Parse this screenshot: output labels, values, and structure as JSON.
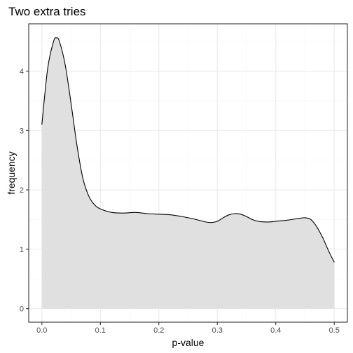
{
  "chart_data": {
    "type": "area",
    "title": "Two extra tries",
    "xlabel": "p-value",
    "ylabel": "frequency",
    "xlim": [
      -0.0225,
      0.5225
    ],
    "ylim": [
      -0.2284,
      4.7964
    ],
    "x_ticks": [
      0.0,
      0.1,
      0.2,
      0.3,
      0.4,
      0.5
    ],
    "x_tick_labels": [
      "0.0",
      "0.1",
      "0.2",
      "0.3",
      "0.4",
      "0.5"
    ],
    "y_ticks": [
      0,
      1,
      2,
      3,
      4
    ],
    "y_tick_labels": [
      "0",
      "1",
      "2",
      "3",
      "4"
    ],
    "grid": true,
    "series": [
      {
        "x": [
          0.0,
          0.01,
          0.02,
          0.025,
          0.03,
          0.04,
          0.05,
          0.06,
          0.07,
          0.08,
          0.09,
          0.1,
          0.12,
          0.14,
          0.16,
          0.18,
          0.2,
          0.22,
          0.24,
          0.26,
          0.28,
          0.29,
          0.3,
          0.31,
          0.32,
          0.33,
          0.34,
          0.35,
          0.36,
          0.37,
          0.38,
          0.39,
          0.4,
          0.42,
          0.44,
          0.45,
          0.46,
          0.47,
          0.48,
          0.49,
          0.5
        ],
        "y": [
          3.1,
          4.05,
          4.5,
          4.56,
          4.5,
          4.1,
          3.45,
          2.75,
          2.2,
          1.9,
          1.75,
          1.68,
          1.62,
          1.61,
          1.62,
          1.6,
          1.59,
          1.58,
          1.55,
          1.51,
          1.46,
          1.45,
          1.47,
          1.53,
          1.58,
          1.6,
          1.59,
          1.55,
          1.5,
          1.47,
          1.46,
          1.46,
          1.47,
          1.49,
          1.52,
          1.53,
          1.5,
          1.38,
          1.2,
          0.98,
          0.78
        ]
      }
    ],
    "colors": {
      "fill": "#e0e0e0",
      "line": "#000000",
      "grid_major": "#ebebeb",
      "grid_minor": "#f5f5f5",
      "border": "#333333"
    }
  }
}
